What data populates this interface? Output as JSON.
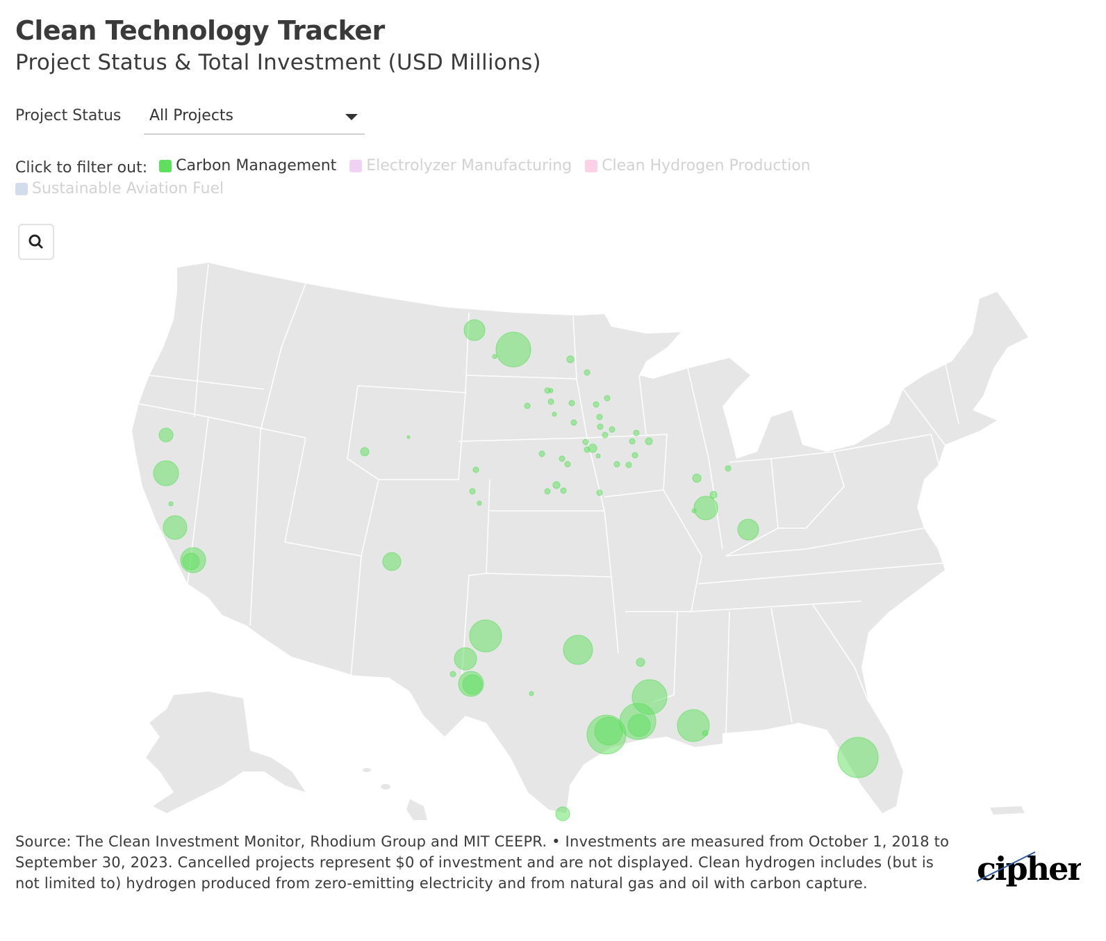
{
  "header": {
    "title": "Clean Technology Tracker",
    "subtitle": "Project Status & Total Investment (USD Millions)"
  },
  "filter": {
    "label": "Project Status",
    "selected": "All Projects"
  },
  "legend": {
    "lead": "Click to filter out:",
    "items": [
      {
        "label": "Carbon Management",
        "color": "#5ee05e",
        "active": true
      },
      {
        "label": "Electrolyzer Manufacturing",
        "color": "#f0d2f5",
        "active": false
      },
      {
        "label": "Clean Hydrogen Production",
        "color": "#f9d2e6",
        "active": false
      },
      {
        "label": "Sustainable Aviation Fuel",
        "color": "#d3dcea",
        "active": false
      }
    ]
  },
  "map": {
    "region": "United States",
    "land_color": "#e6e6e6",
    "border_color": "#ffffff",
    "marker_color": "#5ee05e"
  },
  "footnote": {
    "text": "Source: The Clean Investment Monitor, Rhodium Group and MIT CEEPR. • Investments are measured from October 1, 2018 to September 30, 2023. Cancelled projects represent $0 of investment and are not displayed. Clean hydrogen includes (but is not limited to) hydrogen produced from zero-emitting electricity and from natural gas and oil with carbon capture."
  },
  "brand": {
    "logo_text": "cipher"
  },
  "icons": {
    "zoom": "search-icon",
    "dropdown": "caret-down-icon"
  }
}
